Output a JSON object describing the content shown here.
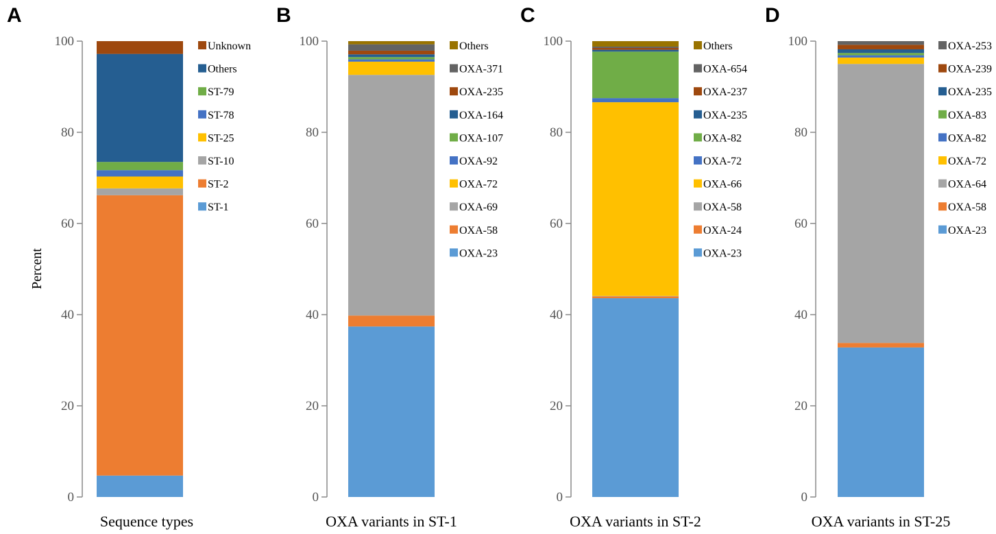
{
  "y_axis_label": "Percent",
  "chart_data": [
    {
      "type": "bar",
      "stacked": true,
      "panel_label": "A",
      "title": "",
      "xlabel": "Sequence types",
      "ylabel": "Percent",
      "ylim": [
        0,
        100
      ],
      "yticks": [
        "0",
        "20",
        "40",
        "60",
        "80",
        "100"
      ],
      "grid": false,
      "series": [
        {
          "name": "ST-1",
          "value": 4.7,
          "color": "#5B9BD5"
        },
        {
          "name": "ST-2",
          "value": 61.5,
          "color": "#ED7D31"
        },
        {
          "name": "ST-10",
          "value": 1.5,
          "color": "#A5A5A5"
        },
        {
          "name": "ST-25",
          "value": 2.6,
          "color": "#FFC000"
        },
        {
          "name": "ST-78",
          "value": 1.4,
          "color": "#4472C4"
        },
        {
          "name": "ST-79",
          "value": 1.8,
          "color": "#70AD47"
        },
        {
          "name": "Others",
          "value": 23.7,
          "color": "#255E91"
        },
        {
          "name": "Unknown",
          "value": 2.8,
          "color": "#9E480E"
        }
      ]
    },
    {
      "type": "bar",
      "stacked": true,
      "panel_label": "B",
      "title": "",
      "xlabel": "OXA variants in ST-1",
      "ylabel": "",
      "ylim": [
        0,
        100
      ],
      "yticks": [
        "0",
        "20",
        "40",
        "60",
        "80",
        "100"
      ],
      "grid": false,
      "series": [
        {
          "name": "OXA-23",
          "value": 37.4,
          "color": "#5B9BD5"
        },
        {
          "name": "OXA-58",
          "value": 2.4,
          "color": "#ED7D31"
        },
        {
          "name": "OXA-69",
          "value": 52.8,
          "color": "#A5A5A5"
        },
        {
          "name": "OXA-72",
          "value": 2.9,
          "color": "#FFC000"
        },
        {
          "name": "OXA-92",
          "value": 0.5,
          "color": "#4472C4"
        },
        {
          "name": "OXA-107",
          "value": 0.5,
          "color": "#70AD47"
        },
        {
          "name": "OXA-164",
          "value": 0.6,
          "color": "#255E91"
        },
        {
          "name": "OXA-235",
          "value": 0.8,
          "color": "#9E480E"
        },
        {
          "name": "OXA-371",
          "value": 1.4,
          "color": "#636363"
        },
        {
          "name": "Others",
          "value": 0.7,
          "color": "#997300"
        }
      ]
    },
    {
      "type": "bar",
      "stacked": true,
      "panel_label": "C",
      "title": "",
      "xlabel": "OXA variants in ST-2",
      "ylabel": "",
      "ylim": [
        0,
        100
      ],
      "yticks": [
        "0",
        "20",
        "40",
        "60",
        "80",
        "100"
      ],
      "grid": false,
      "series": [
        {
          "name": "OXA-23",
          "value": 43.6,
          "color": "#5B9BD5"
        },
        {
          "name": "OXA-24",
          "value": 0.4,
          "color": "#ED7D31"
        },
        {
          "name": "OXA-58",
          "value": 0.1,
          "color": "#A5A5A5"
        },
        {
          "name": "OXA-66",
          "value": 42.5,
          "color": "#FFC000"
        },
        {
          "name": "OXA-72",
          "value": 0.9,
          "color": "#4472C4"
        },
        {
          "name": "OXA-82",
          "value": 10.2,
          "color": "#70AD47"
        },
        {
          "name": "OXA-235",
          "value": 0.4,
          "color": "#255E91"
        },
        {
          "name": "OXA-237",
          "value": 0.4,
          "color": "#9E480E"
        },
        {
          "name": "OXA-654",
          "value": 0.3,
          "color": "#636363"
        },
        {
          "name": "Others",
          "value": 1.2,
          "color": "#997300"
        }
      ]
    },
    {
      "type": "bar",
      "stacked": true,
      "panel_label": "D",
      "title": "",
      "xlabel": "OXA variants in ST-25",
      "ylabel": "",
      "ylim": [
        0,
        100
      ],
      "yticks": [
        "0",
        "20",
        "40",
        "60",
        "80",
        "100"
      ],
      "grid": false,
      "series": [
        {
          "name": "OXA-23",
          "value": 32.8,
          "color": "#5B9BD5"
        },
        {
          "name": "OXA-58",
          "value": 1.0,
          "color": "#ED7D31"
        },
        {
          "name": "OXA-64",
          "value": 61.2,
          "color": "#A5A5A5"
        },
        {
          "name": "OXA-72",
          "value": 1.4,
          "color": "#FFC000"
        },
        {
          "name": "OXA-82",
          "value": 0.5,
          "color": "#4472C4"
        },
        {
          "name": "OXA-83",
          "value": 0.5,
          "color": "#70AD47"
        },
        {
          "name": "OXA-235",
          "value": 0.8,
          "color": "#255E91"
        },
        {
          "name": "OXA-239",
          "value": 1.0,
          "color": "#9E480E"
        },
        {
          "name": "OXA-253",
          "value": 0.8,
          "color": "#636363"
        }
      ]
    }
  ]
}
